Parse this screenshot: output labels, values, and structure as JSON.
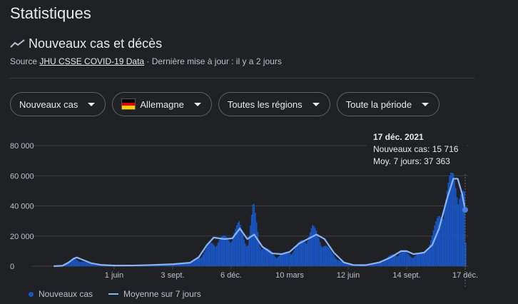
{
  "header": {
    "title": "Statistiques",
    "subtitle": "Nouveaux cas et décès",
    "source_prefix": "Source",
    "source_link": "JHU CSSE COVID-19 Data",
    "source_suffix": "· Dernière mise à jour : il y a 2 jours"
  },
  "filters": [
    {
      "label": "Nouveaux cas"
    },
    {
      "label": "Allemagne",
      "flag": true
    },
    {
      "label": "Toutes les régions"
    },
    {
      "label": "Toute la période"
    }
  ],
  "tooltip": {
    "date": "17 déc. 2021",
    "cases_text": "Nouveaux cas: 15 716",
    "avg_text": "Moy. 7 jours: 37 363"
  },
  "legend": {
    "cases": "Nouveaux cas",
    "average": "Moyenne sur 7 jours"
  },
  "colors": {
    "bars": "#1a56c6",
    "average": "#8ab4f8",
    "grid": "#3c4043",
    "text": "#bdc1c6",
    "flag": [
      "#000000",
      "#dd0000",
      "#ffce00"
    ]
  },
  "chart_data": {
    "type": "bar",
    "title": "",
    "xlabel": "",
    "ylabel": "",
    "ylim": [
      0,
      80000
    ],
    "y_ticks": [
      0,
      20000,
      40000,
      60000,
      80000
    ],
    "y_tick_labels": [
      "0",
      "20 000",
      "40 000",
      "60 000",
      "80 000"
    ],
    "x_tick_labels": [
      "1 juin",
      "3 sept.",
      "6 déc.",
      "10 mars",
      "12 juin",
      "14 sept.",
      "17 déc."
    ],
    "x_tick_dates": [
      "2020-06-01",
      "2020-09-03",
      "2020-12-06",
      "2021-03-10",
      "2021-06-12",
      "2021-09-14",
      "2021-12-17"
    ],
    "x_range": [
      "2020-01-27",
      "2021-12-17"
    ],
    "series": [
      {
        "name": "Nouveaux cas",
        "kind": "bar",
        "points": [
          [
            "2020-03-01",
            0
          ],
          [
            "2020-03-15",
            1500
          ],
          [
            "2020-03-28",
            5500
          ],
          [
            "2020-04-05",
            4500
          ],
          [
            "2020-04-20",
            2000
          ],
          [
            "2020-05-05",
            800
          ],
          [
            "2020-06-01",
            400
          ],
          [
            "2020-07-01",
            500
          ],
          [
            "2020-08-01",
            900
          ],
          [
            "2020-09-03",
            1300
          ],
          [
            "2020-10-01",
            2500
          ],
          [
            "2020-10-20",
            9000
          ],
          [
            "2020-11-01",
            16000
          ],
          [
            "2020-11-15",
            20000
          ],
          [
            "2020-12-01",
            21000
          ],
          [
            "2020-12-18",
            30000
          ],
          [
            "2020-12-25",
            23000
          ],
          [
            "2021-01-01",
            18000
          ],
          [
            "2021-01-10",
            44000
          ],
          [
            "2021-01-20",
            18000
          ],
          [
            "2021-02-01",
            12000
          ],
          [
            "2021-02-15",
            8000
          ],
          [
            "2021-03-01",
            8500
          ],
          [
            "2021-03-20",
            14000
          ],
          [
            "2021-04-01",
            20000
          ],
          [
            "2021-04-15",
            28000
          ],
          [
            "2021-05-01",
            18000
          ],
          [
            "2021-05-15",
            10000
          ],
          [
            "2021-06-01",
            3000
          ],
          [
            "2021-06-20",
            700
          ],
          [
            "2021-07-10",
            800
          ],
          [
            "2021-08-01",
            3000
          ],
          [
            "2021-08-20",
            8000
          ],
          [
            "2021-09-05",
            11000
          ],
          [
            "2021-09-20",
            8000
          ],
          [
            "2021-10-10",
            9000
          ],
          [
            "2021-10-25",
            23000
          ],
          [
            "2021-11-10",
            45000
          ],
          [
            "2021-11-25",
            66000
          ],
          [
            "2021-12-05",
            62000
          ],
          [
            "2021-12-15",
            50000
          ],
          [
            "2021-12-17",
            15716
          ]
        ]
      },
      {
        "name": "Moyenne sur 7 jours",
        "kind": "line",
        "points": [
          [
            "2020-02-25",
            0
          ],
          [
            "2020-03-10",
            300
          ],
          [
            "2020-03-20",
            2500
          ],
          [
            "2020-03-28",
            5000
          ],
          [
            "2020-04-02",
            5800
          ],
          [
            "2020-04-10",
            4500
          ],
          [
            "2020-04-25",
            2000
          ],
          [
            "2020-05-10",
            900
          ],
          [
            "2020-06-01",
            400
          ],
          [
            "2020-07-01",
            450
          ],
          [
            "2020-08-01",
            800
          ],
          [
            "2020-09-03",
            1300
          ],
          [
            "2020-10-01",
            2300
          ],
          [
            "2020-10-15",
            6000
          ],
          [
            "2020-10-28",
            14000
          ],
          [
            "2020-11-08",
            19000
          ],
          [
            "2020-11-25",
            18000
          ],
          [
            "2020-12-08",
            18500
          ],
          [
            "2020-12-20",
            25000
          ],
          [
            "2021-01-01",
            18000
          ],
          [
            "2021-01-12",
            21000
          ],
          [
            "2021-01-25",
            13000
          ],
          [
            "2021-02-10",
            8500
          ],
          [
            "2021-02-25",
            8000
          ],
          [
            "2021-03-10",
            9500
          ],
          [
            "2021-03-25",
            15000
          ],
          [
            "2021-04-08",
            18000
          ],
          [
            "2021-04-22",
            21000
          ],
          [
            "2021-05-05",
            18000
          ],
          [
            "2021-05-20",
            9000
          ],
          [
            "2021-06-05",
            2500
          ],
          [
            "2021-06-20",
            800
          ],
          [
            "2021-07-10",
            700
          ],
          [
            "2021-08-01",
            2500
          ],
          [
            "2021-08-20",
            6000
          ],
          [
            "2021-09-05",
            10000
          ],
          [
            "2021-09-14",
            10000
          ],
          [
            "2021-09-25",
            8000
          ],
          [
            "2021-10-12",
            9000
          ],
          [
            "2021-10-25",
            14000
          ],
          [
            "2021-11-05",
            25000
          ],
          [
            "2021-11-18",
            45000
          ],
          [
            "2021-11-28",
            58000
          ],
          [
            "2021-12-05",
            58000
          ],
          [
            "2021-12-12",
            48000
          ],
          [
            "2021-12-17",
            37363
          ]
        ]
      }
    ],
    "highlight": {
      "date": "2021-12-17",
      "cases": 15716,
      "avg": 37363
    },
    "grid": true,
    "legend_position": "bottom-left"
  }
}
